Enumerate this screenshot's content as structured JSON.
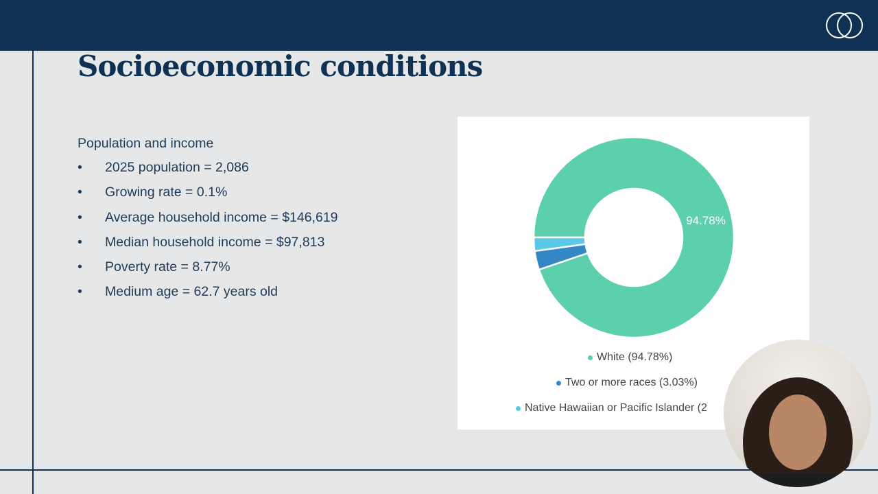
{
  "slide": {
    "title": "Socioeconomic conditions",
    "section_heading": "Population and income",
    "bullets": [
      "2025 population = 2,086",
      "Growing rate = 0.1%",
      "Average household income = $146,619",
      "Median household income = $97,813",
      "Poverty rate = 8.77%",
      "Medium age = 62.7 years old"
    ],
    "bullet_char": "•"
  },
  "colors": {
    "navy": "#0f3153",
    "white_slice": "#5ccfad",
    "two_more": "#3387c4",
    "nhpi": "#5bc8e8"
  },
  "chart_data": {
    "type": "pie",
    "donut": true,
    "categories": [
      "White",
      "Two or more races",
      "Native Hawaiian or Pacific Islander"
    ],
    "values": [
      94.78,
      3.03,
      2.19
    ],
    "colors": [
      "#5ccfad",
      "#3387c4",
      "#5bc8e8"
    ],
    "data_labels": [
      "94.78%"
    ],
    "legend": [
      "White (94.78%)",
      "Two or more races (3.03%)",
      "Native Hawaiian or Pacific Islander (2"
    ],
    "legend_placement": "bottom"
  }
}
